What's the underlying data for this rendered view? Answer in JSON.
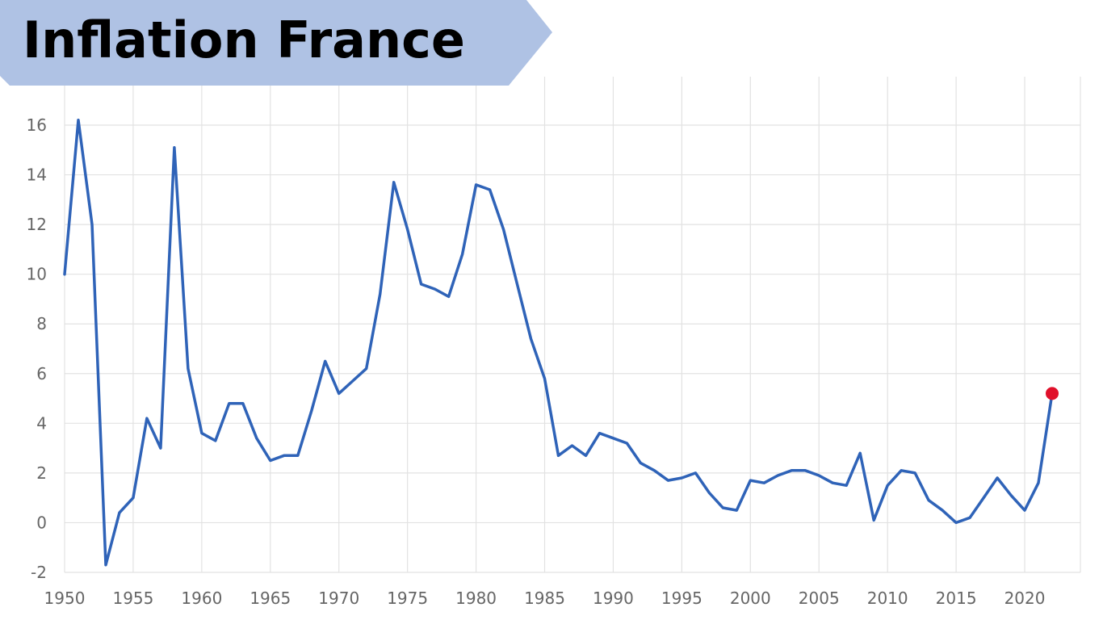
{
  "title": "Inflation France",
  "colors": {
    "banner": "#afc2e4",
    "line": "#2f63b8",
    "highlight_point": "#e0102a",
    "grid": "#e2e2e2",
    "tick_text": "#666666"
  },
  "chart_data": {
    "type": "line",
    "title": "Inflation France",
    "xlabel": "",
    "ylabel": "",
    "xlim": [
      1950,
      2023
    ],
    "ylim": [
      -2,
      17
    ],
    "x_ticks": [
      1950,
      1955,
      1960,
      1965,
      1970,
      1975,
      1980,
      1985,
      1990,
      1995,
      2000,
      2005,
      2010,
      2015,
      2020
    ],
    "x_tick_labels": [
      "1950",
      "1955",
      "1960",
      "1965",
      "1970",
      "1975",
      "1980",
      "1985",
      "1990",
      "1995",
      "2000",
      "2005",
      "2010",
      "2015",
      "2020"
    ],
    "y_ticks": [
      -2,
      0,
      2,
      4,
      6,
      8,
      10,
      12,
      14,
      16
    ],
    "y_tick_labels": [
      "-2",
      "0",
      "2",
      "4",
      "6",
      "8",
      "10",
      "12",
      "14",
      "16"
    ],
    "grid": true,
    "legend": "none",
    "series": [
      {
        "x": [
          1950,
          1951,
          1952,
          1953,
          1954,
          1955,
          1956,
          1957,
          1958,
          1959,
          1960,
          1961,
          1962,
          1963,
          1964,
          1965,
          1966,
          1967,
          1968,
          1969,
          1970,
          1971,
          1972,
          1973,
          1974,
          1975,
          1976,
          1977,
          1978,
          1979,
          1980,
          1981,
          1982,
          1983,
          1984,
          1985,
          1986,
          1987,
          1988,
          1989,
          1990,
          1991,
          1992,
          1993,
          1994,
          1995,
          1996,
          1997,
          1998,
          1999,
          2000,
          2001,
          2002,
          2003,
          2004,
          2005,
          2006,
          2007,
          2008,
          2009,
          2010,
          2011,
          2012,
          2013,
          2014,
          2015,
          2016,
          2017,
          2018,
          2019,
          2020,
          2021,
          2022
        ],
        "values": [
          10.0,
          16.2,
          12.0,
          -1.7,
          0.4,
          1.0,
          4.2,
          3.0,
          15.1,
          6.2,
          3.6,
          3.3,
          4.8,
          4.8,
          3.4,
          2.5,
          2.7,
          2.7,
          4.5,
          6.5,
          5.2,
          5.7,
          6.2,
          9.2,
          13.7,
          11.8,
          9.6,
          9.4,
          9.1,
          10.8,
          13.6,
          13.4,
          11.8,
          9.6,
          7.4,
          5.8,
          2.7,
          3.1,
          2.7,
          3.6,
          3.4,
          3.2,
          2.4,
          2.1,
          1.7,
          1.8,
          2.0,
          1.2,
          0.6,
          0.5,
          1.7,
          1.6,
          1.9,
          2.1,
          2.1,
          1.9,
          1.6,
          1.5,
          2.8,
          0.1,
          1.5,
          2.1,
          2.0,
          0.9,
          0.5,
          0.0,
          0.2,
          1.0,
          1.8,
          1.1,
          0.5,
          1.6,
          5.2
        ]
      }
    ],
    "highlight_point": {
      "x": 2022,
      "y": 5.2
    }
  }
}
